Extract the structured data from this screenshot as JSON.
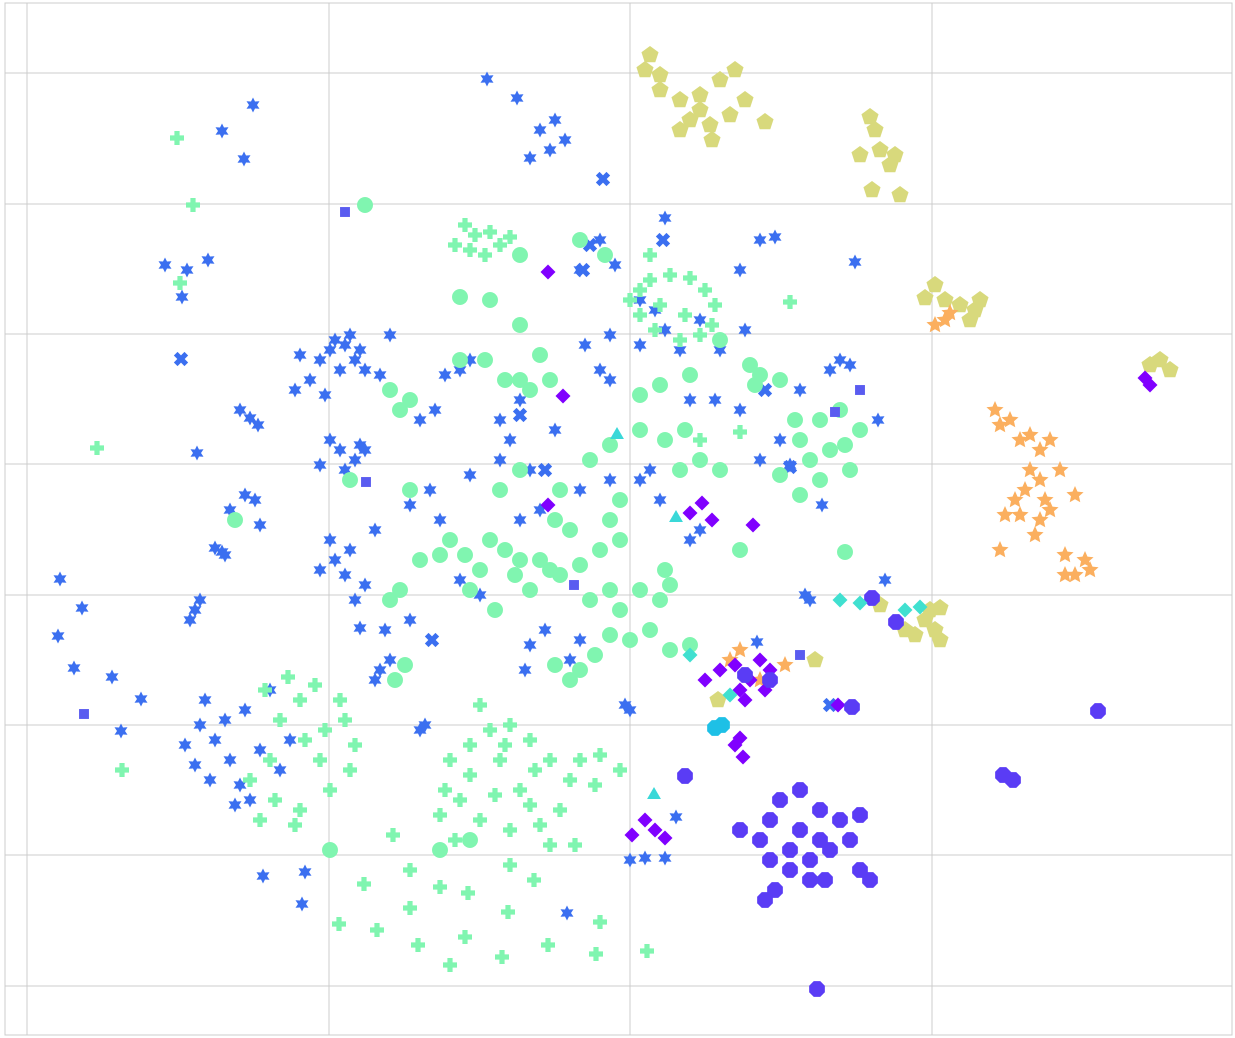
{
  "chart_data": {
    "type": "scatter",
    "grid": true,
    "xlim": [
      5,
      1232
    ],
    "ylim": [
      1035,
      5
    ],
    "xticks": [
      27,
      329,
      630,
      932
    ],
    "yticks": [
      986,
      855,
      725,
      595,
      464,
      334,
      204,
      73
    ],
    "series": [
      {
        "color": "#3b6ff0",
        "marker": "hexagram",
        "x": [
          330,
          345,
          355,
          340,
          320,
          360,
          350,
          335,
          365,
          310,
          300,
          380,
          390,
          295,
          325,
          340,
          355,
          365,
          330,
          345,
          360,
          320,
          253,
          222,
          244,
          487,
          517,
          187,
          165,
          208,
          182,
          197,
          60,
          82,
          58,
          74,
          112,
          141,
          121,
          263,
          305,
          302,
          567,
          555,
          540,
          565,
          530,
          550,
          250,
          258,
          240,
          255,
          230,
          260,
          245,
          222,
          215,
          225,
          335,
          320,
          345,
          330,
          350,
          375,
          365,
          355,
          385,
          360,
          410,
          195,
          190,
          200,
          380,
          375,
          390,
          420,
          425,
          630,
          625,
          185,
          200,
          215,
          230,
          245,
          210,
          240,
          225,
          260,
          270,
          205,
          195,
          250,
          280,
          290,
          235,
          460,
          470,
          445,
          420,
          435,
          410,
          430,
          440,
          470,
          500,
          510,
          520,
          500,
          520,
          540,
          530,
          460,
          480,
          555,
          580,
          600,
          615,
          585,
          600,
          610,
          640,
          655,
          665,
          680,
          700,
          720,
          640,
          660,
          690,
          700,
          530,
          545,
          525,
          580,
          570,
          610,
          580,
          610,
          640,
          650,
          745,
          740,
          760,
          775,
          740,
          665,
          760,
          790,
          780,
          800,
          830,
          840,
          850,
          878,
          855,
          822,
          885,
          805,
          810,
          757,
          630,
          645,
          665,
          676,
          715,
          690
        ],
        "y": [
          350,
          345,
          360,
          370,
          360,
          350,
          335,
          340,
          370,
          380,
          355,
          375,
          335,
          390,
          395,
          450,
          460,
          450,
          440,
          470,
          445,
          465,
          105,
          131,
          159,
          79,
          98,
          270,
          265,
          260,
          297,
          453,
          579,
          608,
          636,
          668,
          677,
          699,
          731,
          876,
          872,
          904,
          913,
          120,
          130,
          140,
          158,
          150,
          418,
          425,
          410,
          500,
          510,
          525,
          495,
          552,
          548,
          555,
          560,
          570,
          575,
          540,
          550,
          530,
          585,
          600,
          630,
          628,
          620,
          610,
          620,
          600,
          670,
          680,
          660,
          730,
          725,
          710,
          705,
          745,
          725,
          740,
          760,
          710,
          780,
          785,
          720,
          750,
          690,
          700,
          765,
          800,
          770,
          740,
          805,
          370,
          360,
          375,
          420,
          410,
          505,
          490,
          520,
          475,
          420,
          440,
          400,
          460,
          520,
          510,
          470,
          580,
          595,
          430,
          270,
          240,
          265,
          345,
          370,
          380,
          300,
          310,
          330,
          350,
          320,
          350,
          345,
          500,
          540,
          530,
          645,
          630,
          670,
          640,
          660,
          335,
          490,
          480,
          480,
          470,
          330,
          410,
          240,
          237,
          270,
          218,
          460,
          465,
          440,
          390,
          370,
          360,
          365,
          420,
          262,
          505,
          580,
          595,
          600,
          642,
          860,
          858,
          858,
          817,
          400,
          400
        ]
      },
      {
        "color": "#3b6ff0",
        "marker": "x",
        "x": [
          603,
          181,
          432,
          545,
          520,
          583,
          790,
          830,
          590,
          765,
          663
        ],
        "y": [
          179,
          359,
          640,
          470,
          415,
          270,
          467,
          705,
          245,
          390,
          240
        ]
      },
      {
        "color": "#80f5b0",
        "marker": "plus",
        "x": [
          450,
          470,
          490,
          510,
          530,
          550,
          570,
          560,
          540,
          510,
          480,
          460,
          445,
          500,
          520,
          535,
          495,
          470,
          580,
          600,
          595,
          620,
          480,
          455,
          510,
          550,
          575,
          440,
          530,
          505,
          265,
          288,
          315,
          340,
          345,
          355,
          350,
          330,
          300,
          275,
          260,
          295,
          320,
          305,
          280,
          300,
          325,
          250,
          270,
          364,
          410,
          440,
          468,
          410,
          339,
          377,
          418,
          450,
          465,
          502,
          508,
          548,
          596,
          600,
          647,
          534,
          393,
          122,
          177,
          193,
          97,
          640,
          650,
          670,
          690,
          705,
          715,
          712,
          700,
          680,
          655,
          640,
          630,
          685,
          660,
          465,
          475,
          490,
          500,
          485,
          470,
          510,
          455,
          650,
          740,
          700,
          790,
          180
        ],
        "y": [
          760,
          745,
          730,
          725,
          740,
          760,
          780,
          810,
          825,
          830,
          820,
          800,
          790,
          760,
          790,
          770,
          795,
          775,
          760,
          755,
          785,
          770,
          705,
          840,
          865,
          845,
          845,
          815,
          805,
          745,
          690,
          677,
          685,
          700,
          720,
          745,
          770,
          790,
          810,
          800,
          820,
          825,
          760,
          740,
          720,
          700,
          730,
          780,
          760,
          884,
          870,
          887,
          893,
          908,
          924,
          930,
          945,
          965,
          937,
          957,
          912,
          945,
          954,
          922,
          951,
          880,
          835,
          770,
          138,
          205,
          448,
          290,
          280,
          275,
          278,
          290,
          305,
          325,
          335,
          340,
          330,
          315,
          300,
          315,
          305,
          225,
          235,
          232,
          245,
          255,
          250,
          237,
          245,
          255,
          432,
          440,
          302,
          283
        ]
      },
      {
        "color": "#80f5b0",
        "marker": "circle",
        "x": [
          530,
          550,
          540,
          560,
          520,
          505,
          490,
          480,
          470,
          495,
          515,
          580,
          600,
          620,
          590,
          610,
          640,
          660,
          650,
          630,
          610,
          670,
          665,
          555,
          570,
          500,
          520,
          560,
          590,
          610,
          640,
          665,
          685,
          700,
          720,
          680,
          610,
          620,
          450,
          465,
          440,
          420,
          410,
          400,
          390,
          580,
          605,
          520,
          490,
          460,
          520,
          540,
          550,
          530,
          520,
          505,
          485,
          460,
          410,
          400,
          390,
          660,
          640,
          690,
          720,
          750,
          760,
          755,
          780,
          820,
          840,
          860,
          830,
          810,
          800,
          795,
          845,
          850,
          820,
          800,
          780,
          845,
          740,
          350,
          365,
          330,
          440,
          570,
          580,
          555,
          595,
          620,
          670,
          690,
          235,
          405,
          395,
          470
        ],
        "y": [
          590,
          570,
          560,
          575,
          560,
          550,
          540,
          570,
          590,
          610,
          575,
          565,
          550,
          540,
          600,
          590,
          590,
          600,
          630,
          640,
          635,
          585,
          570,
          520,
          530,
          490,
          470,
          490,
          460,
          445,
          430,
          440,
          430,
          460,
          470,
          470,
          520,
          500,
          540,
          555,
          555,
          560,
          490,
          590,
          600,
          240,
          255,
          255,
          300,
          297,
          325,
          355,
          380,
          390,
          380,
          380,
          360,
          360,
          400,
          410,
          390,
          385,
          395,
          375,
          340,
          365,
          375,
          385,
          380,
          420,
          410,
          430,
          450,
          460,
          440,
          420,
          445,
          470,
          480,
          495,
          475,
          552,
          550,
          480,
          205,
          850,
          850,
          680,
          670,
          665,
          655,
          610,
          650,
          645,
          520,
          665,
          680,
          840
        ]
      },
      {
        "color": "#d8d97c",
        "marker": "pentagon",
        "x": [
          650,
          645,
          660,
          680,
          700,
          720,
          735,
          745,
          730,
          710,
          690,
          680,
          712,
          765,
          700,
          660,
          870,
          875,
          860,
          880,
          895,
          890,
          872,
          900,
          925,
          935,
          945,
          960,
          975,
          980,
          970,
          1160,
          1170,
          1150,
          925,
          935,
          940,
          930,
          915,
          940,
          905,
          815,
          718,
          880
        ],
        "y": [
          55,
          70,
          90,
          100,
          95,
          80,
          70,
          100,
          115,
          125,
          120,
          130,
          140,
          122,
          110,
          75,
          117,
          130,
          155,
          150,
          155,
          165,
          190,
          195,
          298,
          285,
          300,
          305,
          310,
          300,
          320,
          360,
          370,
          365,
          620,
          630,
          640,
          610,
          635,
          608,
          630,
          660,
          700,
          605
        ]
      },
      {
        "color": "#fbaf5f",
        "marker": "star",
        "x": [
          995,
          1000,
          1010,
          1020,
          1030,
          1040,
          1050,
          1030,
          1040,
          1025,
          1015,
          1045,
          1050,
          1075,
          1060,
          1005,
          1020,
          1040,
          1035,
          1000,
          1065,
          1085,
          1090,
          1075,
          1065,
          945,
          935,
          950,
          730,
          740,
          760,
          785
        ],
        "y": [
          410,
          425,
          420,
          440,
          435,
          450,
          440,
          470,
          480,
          490,
          500,
          500,
          510,
          495,
          470,
          515,
          515,
          520,
          535,
          550,
          555,
          560,
          570,
          575,
          575,
          320,
          325,
          313,
          660,
          650,
          680,
          665
        ]
      },
      {
        "color": "#8000ff",
        "marker": "diamond",
        "x": [
          548,
          563,
          548,
          690,
          702,
          712,
          753,
          705,
          720,
          735,
          750,
          765,
          770,
          760,
          740,
          745,
          735,
          740,
          743,
          645,
          655,
          632,
          665,
          838,
          1145,
          1150
        ],
        "y": [
          272,
          396,
          505,
          513,
          503,
          520,
          525,
          680,
          670,
          665,
          680,
          690,
          670,
          660,
          690,
          700,
          745,
          738,
          757,
          820,
          830,
          835,
          838,
          705,
          378,
          385
        ]
      },
      {
        "color": "#5a3cf5",
        "marker": "octagon",
        "x": [
          780,
          800,
          820,
          840,
          850,
          830,
          810,
          790,
          770,
          760,
          770,
          800,
          820,
          790,
          810,
          825,
          860,
          870,
          860,
          765,
          775,
          740,
          685,
          852,
          1098,
          1003,
          1013,
          817,
          896,
          872,
          745,
          770
        ],
        "y": [
          800,
          790,
          810,
          820,
          840,
          850,
          860,
          870,
          860,
          840,
          820,
          830,
          840,
          850,
          880,
          880,
          815,
          880,
          870,
          900,
          890,
          830,
          776,
          707,
          711,
          775,
          780,
          989,
          622,
          598,
          675,
          680
        ]
      },
      {
        "color": "#3ad8d8",
        "marker": "triangle",
        "x": [
          617,
          676,
          654
        ],
        "y": [
          435,
          518,
          795
        ]
      },
      {
        "color": "#40e0d0",
        "marker": "diamond",
        "x": [
          840,
          860,
          905,
          920,
          690,
          730
        ],
        "y": [
          600,
          603,
          610,
          607,
          655,
          695
        ]
      },
      {
        "color": "#1ec0e6",
        "marker": "octagon",
        "x": [
          715,
          722
        ],
        "y": [
          728,
          725
        ]
      },
      {
        "color": "#5a5cf0",
        "marker": "square",
        "x": [
          84,
          860,
          835,
          366,
          800,
          345,
          574
        ],
        "y": [
          714,
          390,
          412,
          482,
          655,
          212,
          585
        ]
      }
    ]
  }
}
